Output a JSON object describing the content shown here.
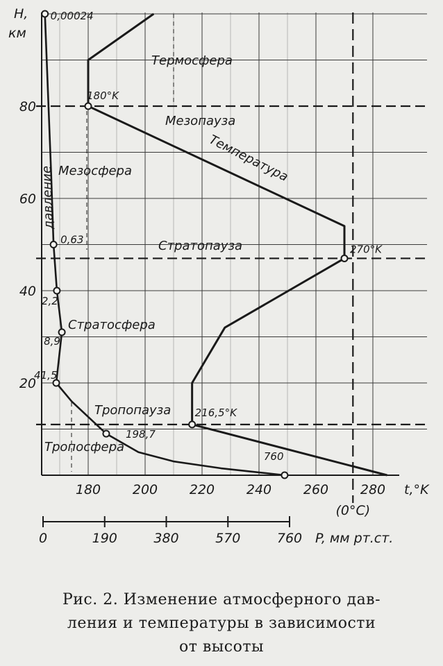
{
  "chart_data": {
    "type": "line",
    "y_axis": {
      "label_top": "H,",
      "label_unit": "км",
      "ticks": [
        20,
        40,
        60,
        80
      ],
      "range": [
        0,
        100
      ]
    },
    "temperature_axis": {
      "label": "t,°K",
      "sub_label": "(0°C)",
      "ticks": [
        180,
        200,
        220,
        240,
        260,
        280
      ],
      "range": [
        162,
        290
      ]
    },
    "pressure_axis": {
      "label": "P, мм рт.ст.",
      "ticks": [
        0,
        190,
        380,
        570,
        760
      ],
      "range": [
        0,
        760
      ]
    },
    "series": [
      {
        "name": "Температура",
        "points": [
          {
            "t": 285,
            "h": 0
          },
          {
            "t": 216.5,
            "h": 11
          },
          {
            "t": 216.5,
            "h": 20
          },
          {
            "t": 228,
            "h": 32
          },
          {
            "t": 270,
            "h": 47
          },
          {
            "t": 270,
            "h": 54
          },
          {
            "t": 180,
            "h": 80
          },
          {
            "t": 180,
            "h": 90
          },
          {
            "t": 203,
            "h": 100
          }
        ]
      },
      {
        "name": "Давление",
        "points": [
          {
            "p": 760,
            "h": 0
          },
          {
            "p": 560,
            "h": 1.5
          },
          {
            "p": 410,
            "h": 3
          },
          {
            "p": 300,
            "h": 5
          },
          {
            "p": 198.7,
            "h": 9
          },
          {
            "p": 90,
            "h": 16
          },
          {
            "p": 41.5,
            "h": 20
          },
          {
            "p": 8.9,
            "h": 31
          },
          {
            "p": 2.2,
            "h": 40
          },
          {
            "p": 0.63,
            "h": 50
          },
          {
            "p": 0.2,
            "h": 65
          },
          {
            "p": 0.00024,
            "h": 100
          }
        ]
      }
    ],
    "point_labels": [
      {
        "text": "0,00024",
        "series": "Давление",
        "h": 100,
        "p": 0.00024
      },
      {
        "text": "0,63",
        "series": "Давление",
        "h": 50,
        "p": 0.63
      },
      {
        "text": "2,2",
        "series": "Давление",
        "h": 40,
        "p": 2.2
      },
      {
        "text": "8,9",
        "series": "Давление",
        "h": 31,
        "p": 8.9
      },
      {
        "text": "41,5",
        "series": "Давление",
        "h": 20,
        "p": 41.5
      },
      {
        "text": "198,7",
        "series": "Давление",
        "h": 9,
        "p": 198.7
      },
      {
        "text": "760",
        "series": "Давление",
        "h": 0,
        "p": 760
      },
      {
        "text": "180°K",
        "series": "Температура",
        "h": 80,
        "t": 180
      },
      {
        "text": "270°K",
        "series": "Температура",
        "h": 47,
        "t": 270
      },
      {
        "text": "216,5°K",
        "series": "Температура",
        "h": 11,
        "t": 216.5
      }
    ],
    "layer_boundaries": [
      {
        "h": 80,
        "name": "Мезопауза"
      },
      {
        "h": 47,
        "name": "Стратопауза"
      },
      {
        "h": 11,
        "name": "Тропопауза"
      }
    ],
    "layers": [
      "Термосфера",
      "Мезосфера",
      "Стратосфера",
      "Тропосфера"
    ],
    "series_labels": {
      "temperature": "Температура",
      "pressure": "давление"
    },
    "zero_celsius_t": 273,
    "grid": true
  },
  "caption": {
    "line1": "Рис. 2. Изменение атмосферного дав-",
    "line2": "ления и температуры в зависимости",
    "line3": "от высоты"
  },
  "colors": {
    "ink": "#1a1a1a",
    "grid": "#3a3a3a",
    "background": "#ededea"
  }
}
